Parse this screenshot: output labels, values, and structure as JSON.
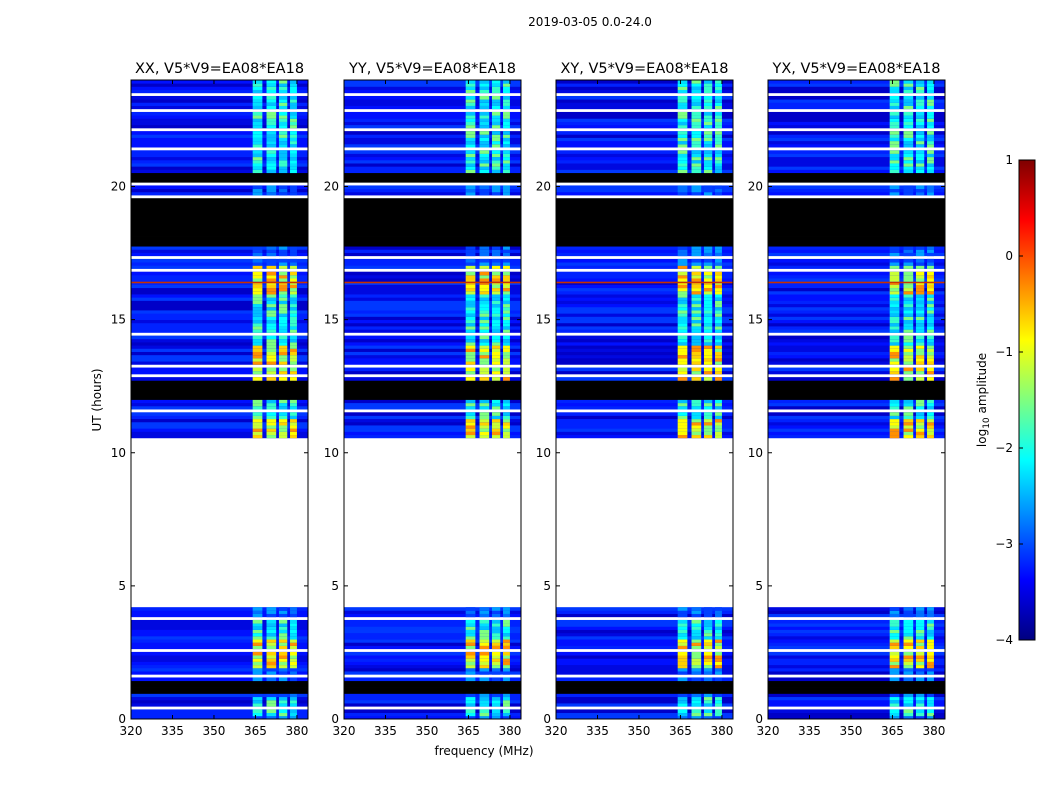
{
  "figure": {
    "suptitle": "2019-03-05 0.0-24.0",
    "ylabel": "UT (hours)",
    "xlabel": "frequency (MHz)"
  },
  "colors": {
    "flagged": "#000000",
    "missing": "#ffffff",
    "colormap": [
      "#00007f",
      "#0000ff",
      "#007fff",
      "#00ffff",
      "#7fff7f",
      "#ffff00",
      "#ff7f00",
      "#ff0000",
      "#7f0000"
    ]
  },
  "chart_data": {
    "type": "heatmap",
    "panels": [
      {
        "title": "XX, V5*V9=EA08*EA18",
        "polarization": "XX"
      },
      {
        "title": "YY, V5*V9=EA08*EA18",
        "polarization": "YY"
      },
      {
        "title": "XY, V5*V9=EA08*EA18",
        "polarization": "XY"
      },
      {
        "title": "YX, V5*V9=EA08*EA18",
        "polarization": "YX"
      }
    ],
    "xlim": [
      320,
      384
    ],
    "xticks": [
      320,
      335,
      350,
      365,
      380
    ],
    "xtick_labels": [
      "320",
      "335",
      "350",
      "365",
      "380"
    ],
    "ylim": [
      0,
      24
    ],
    "yticks": [
      0,
      5,
      10,
      15,
      20
    ],
    "ytick_labels": [
      "0",
      "5",
      "10",
      "15",
      "20"
    ],
    "colorbar": {
      "label_prefix": "log",
      "label_sub": "10",
      "label_suffix": " amplitude",
      "range": [
        -4,
        1
      ],
      "ticks": [
        1,
        0,
        -1,
        -2,
        -3,
        -4
      ],
      "tick_labels": [
        "1",
        "0",
        "−1",
        "−2",
        "−3",
        "−4"
      ]
    },
    "no_data_range_hours": [
      4.1,
      10.5
    ],
    "flagged_blocks_hours": [
      [
        17.7,
        19.5
      ],
      [
        11.9,
        12.6
      ],
      [
        20.1,
        20.5
      ],
      [
        0.85,
        1.35
      ]
    ],
    "rfi_band_mhz": [
      363,
      379
    ],
    "rfi_subbands_mhz": [
      [
        364,
        367.5
      ],
      [
        369,
        372.5
      ],
      [
        373.5,
        376.5
      ],
      [
        377.5,
        380
      ]
    ]
  }
}
